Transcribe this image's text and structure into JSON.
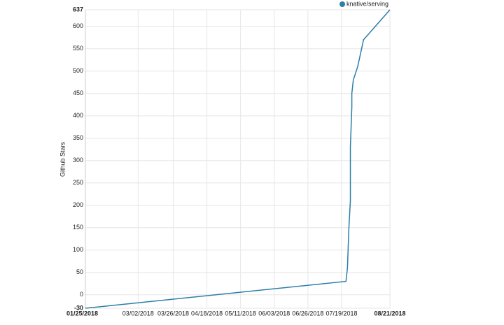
{
  "chart_data": {
    "type": "line",
    "y_label": "Github Stars",
    "x": [
      "2018-01-25",
      "2018-07-22",
      "2018-07-23",
      "2018-07-24",
      "2018-07-25",
      "2018-07-25",
      "2018-07-26",
      "2018-07-26",
      "2018-07-27",
      "2018-07-30",
      "2018-08-03",
      "2018-08-21"
    ],
    "series": [
      {
        "name": "knative/serving",
        "color": "#2d7ea8",
        "values": [
          -30,
          30,
          60,
          150,
          210,
          330,
          420,
          450,
          480,
          510,
          570,
          637
        ]
      }
    ],
    "xlim": [
      "2018-01-25",
      "2018-08-21"
    ],
    "xticks": [
      {
        "value": "2018-01-25",
        "label": "01/25/2018"
      },
      {
        "value": "2018-03-02",
        "label": "03/02/2018"
      },
      {
        "value": "2018-03-26",
        "label": "03/26/2018"
      },
      {
        "value": "2018-04-18",
        "label": "04/18/2018"
      },
      {
        "value": "2018-05-11",
        "label": "05/11/2018"
      },
      {
        "value": "2018-06-03",
        "label": "06/03/2018"
      },
      {
        "value": "2018-06-26",
        "label": "06/26/2018"
      },
      {
        "value": "2018-07-19",
        "label": "07/19/2018"
      },
      {
        "value": "2018-08-21",
        "label": "08/21/2018"
      }
    ],
    "ylim": [
      -30,
      637
    ],
    "yticks": [
      -30,
      0,
      50,
      100,
      150,
      200,
      250,
      300,
      350,
      400,
      450,
      500,
      550,
      600,
      637
    ],
    "grid": true
  }
}
